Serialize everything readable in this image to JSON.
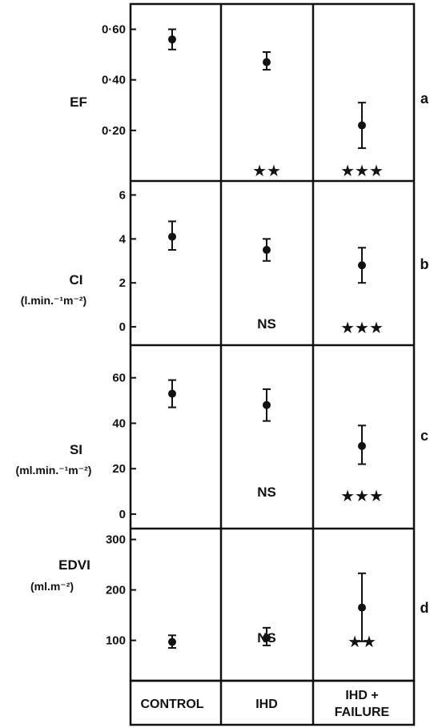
{
  "chart_data": [
    {
      "type": "scatter",
      "panel_letter": "a",
      "ylabel": "EF",
      "ylabel_unit": "",
      "ylim": [
        0,
        0.7
      ],
      "yticks": [
        {
          "v": 0.2,
          "label": "0·20"
        },
        {
          "v": 0.4,
          "label": "0·40"
        },
        {
          "v": 0.6,
          "label": "0·60"
        }
      ],
      "points": [
        {
          "category": "CONTROL",
          "mean": 0.56,
          "low": 0.52,
          "high": 0.6,
          "marker": ""
        },
        {
          "category": "IHD",
          "mean": 0.47,
          "low": 0.44,
          "high": 0.51,
          "marker": "★★"
        },
        {
          "category": "IHD + FAILURE",
          "mean": 0.22,
          "low": 0.13,
          "high": 0.31,
          "marker": "★★★"
        }
      ]
    },
    {
      "type": "scatter",
      "panel_letter": "b",
      "ylabel": "CI",
      "ylabel_unit": "(l.min.⁻¹m⁻²)",
      "ylim": [
        -0.8,
        6.6
      ],
      "yticks": [
        {
          "v": 0,
          "label": "0"
        },
        {
          "v": 2,
          "label": "2"
        },
        {
          "v": 4,
          "label": "4"
        },
        {
          "v": 6,
          "label": "6"
        }
      ],
      "points": [
        {
          "category": "CONTROL",
          "mean": 4.1,
          "low": 3.5,
          "high": 4.8,
          "marker": ""
        },
        {
          "category": "IHD",
          "mean": 3.5,
          "low": 3.0,
          "high": 4.0,
          "marker": "NS"
        },
        {
          "category": "IHD + FAILURE",
          "mean": 2.8,
          "low": 2.0,
          "high": 3.6,
          "marker": "★★★"
        }
      ]
    },
    {
      "type": "scatter",
      "panel_letter": "c",
      "ylabel": "SI",
      "ylabel_unit": "(ml.min.⁻¹m⁻²)",
      "ylim": [
        -6,
        74
      ],
      "yticks": [
        {
          "v": 0,
          "label": "0"
        },
        {
          "v": 20,
          "label": "20"
        },
        {
          "v": 40,
          "label": "40"
        },
        {
          "v": 60,
          "label": "60"
        }
      ],
      "points": [
        {
          "category": "CONTROL",
          "mean": 53,
          "low": 47,
          "high": 59,
          "marker": ""
        },
        {
          "category": "IHD",
          "mean": 48,
          "low": 41,
          "high": 55,
          "marker": "NS"
        },
        {
          "category": "IHD + FAILURE",
          "mean": 30,
          "low": 22,
          "high": 39,
          "marker": "★★★"
        }
      ]
    },
    {
      "type": "scatter",
      "panel_letter": "d",
      "ylabel": "EDVI",
      "ylabel_unit": "(ml.m⁻²)",
      "ylim": [
        20,
        320
      ],
      "yticks": [
        {
          "v": 100,
          "label": "100"
        },
        {
          "v": 200,
          "label": "200"
        },
        {
          "v": 300,
          "label": "300"
        }
      ],
      "points": [
        {
          "category": "CONTROL",
          "mean": 97,
          "low": 85,
          "high": 110,
          "marker": ""
        },
        {
          "category": "IHD",
          "mean": 105,
          "low": 90,
          "high": 125,
          "marker": "NS"
        },
        {
          "category": "IHD + FAILURE",
          "mean": 165,
          "low": 98,
          "high": 233,
          "marker": "★★"
        }
      ]
    }
  ],
  "categories": [
    {
      "line1": "CONTROL",
      "line2": ""
    },
    {
      "line1": "IHD",
      "line2": ""
    },
    {
      "line1": "IHD +",
      "line2": "FAILURE"
    }
  ]
}
